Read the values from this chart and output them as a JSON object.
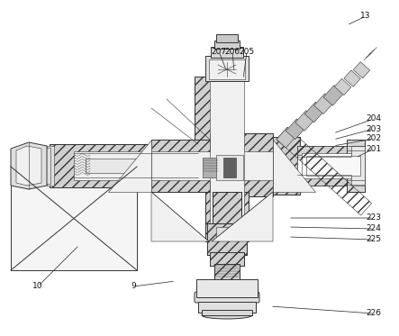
{
  "bg_color": "#ffffff",
  "lc": "#333333",
  "figsize": [
    4.43,
    3.73
  ],
  "dpi": 100,
  "labels_info": [
    [
      "13",
      406,
      18,
      385,
      28
    ],
    [
      "207",
      243,
      57,
      252,
      80
    ],
    [
      "206",
      258,
      57,
      260,
      80
    ],
    [
      "205",
      274,
      57,
      270,
      88
    ],
    [
      "204",
      415,
      132,
      370,
      148
    ],
    [
      "203",
      415,
      143,
      370,
      155
    ],
    [
      "202",
      415,
      154,
      370,
      162
    ],
    [
      "201",
      415,
      165,
      395,
      175
    ],
    [
      "223",
      415,
      242,
      320,
      242
    ],
    [
      "224",
      415,
      254,
      320,
      252
    ],
    [
      "225",
      415,
      266,
      320,
      263
    ],
    [
      "226",
      415,
      348,
      300,
      340
    ],
    [
      "10",
      42,
      318,
      88,
      272
    ],
    [
      "9",
      148,
      318,
      195,
      312
    ]
  ]
}
